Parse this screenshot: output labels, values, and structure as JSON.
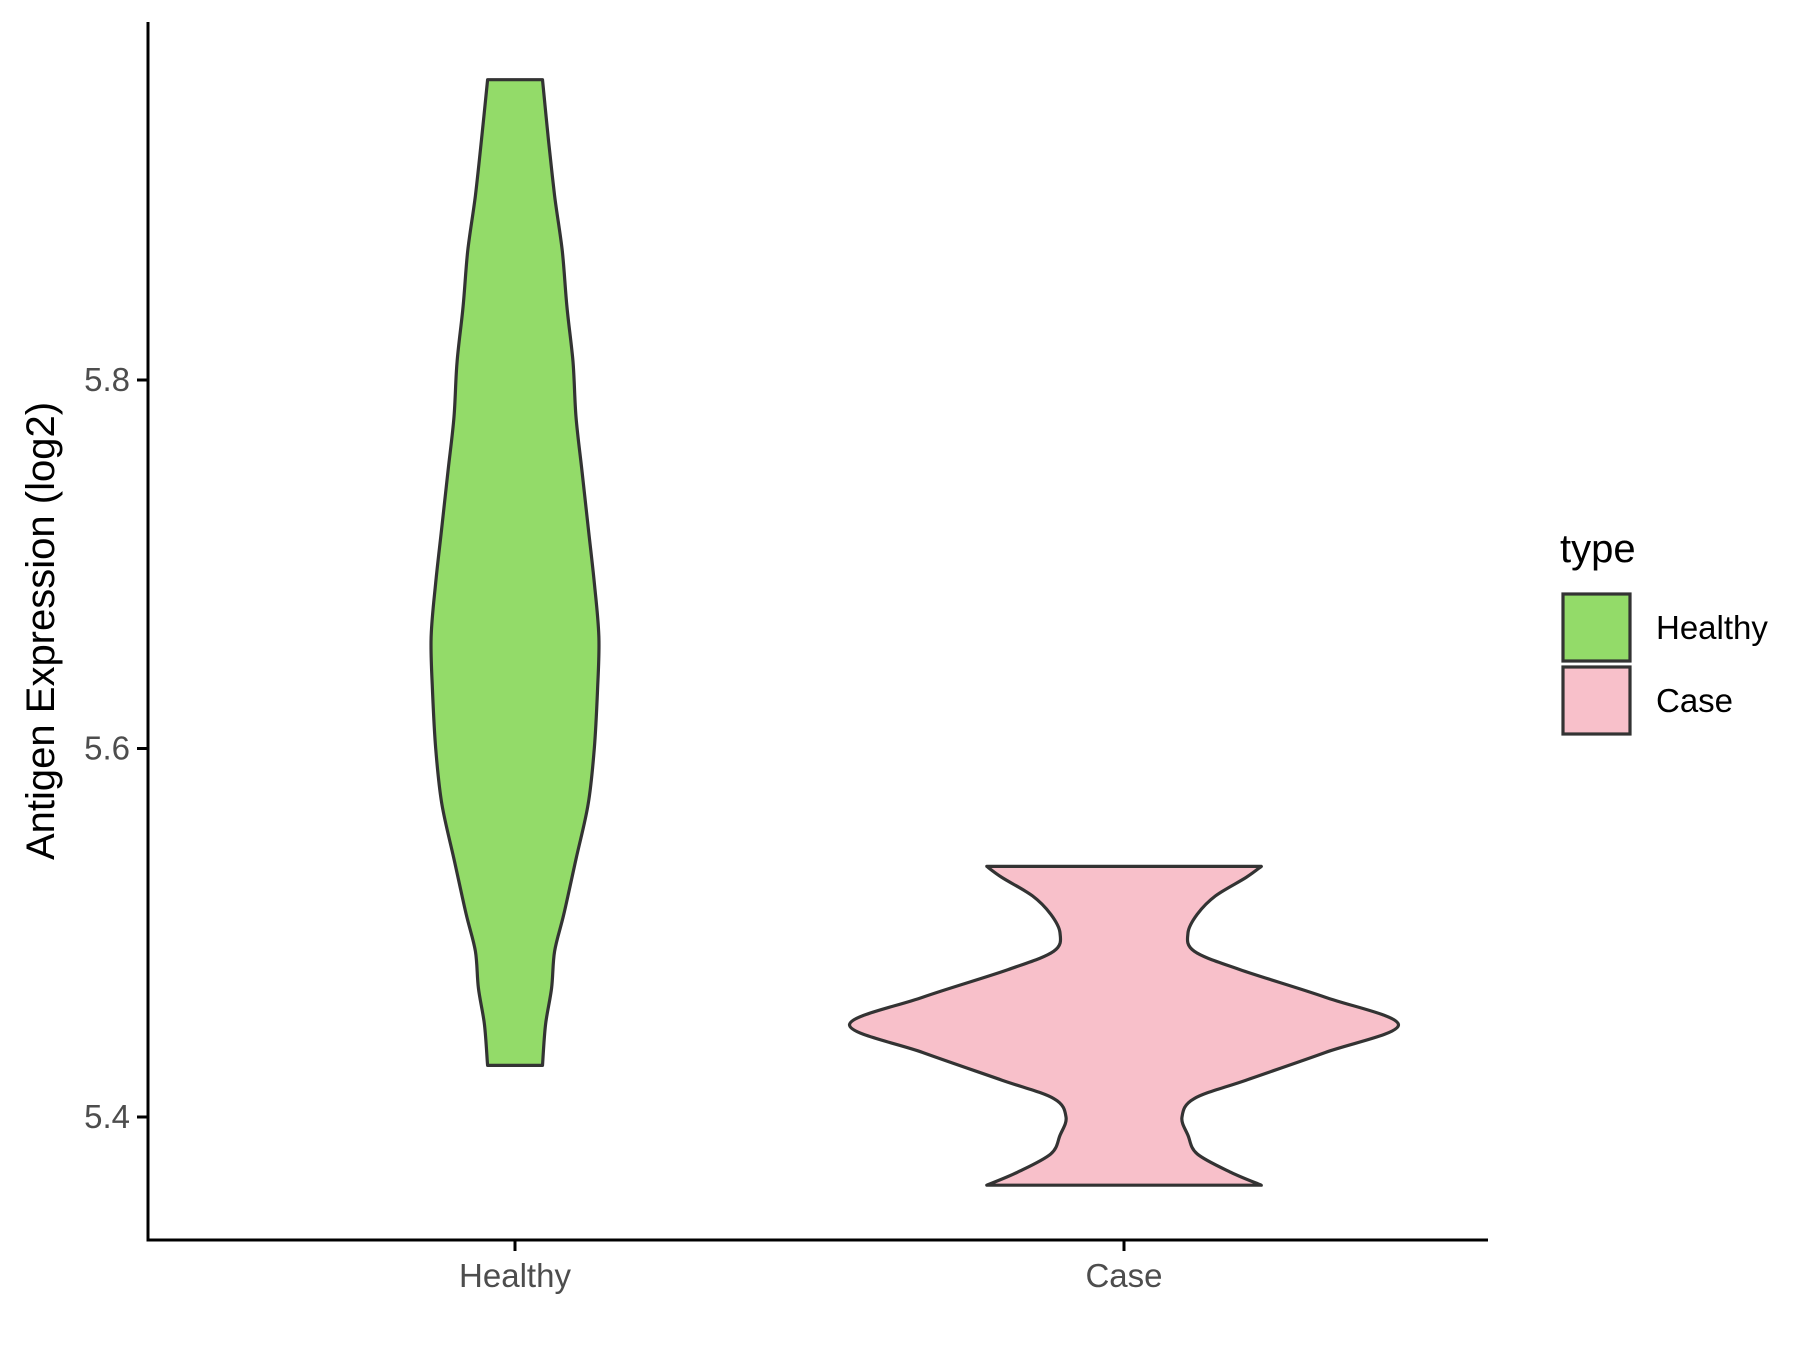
{
  "chart_data": {
    "type": "violin",
    "categories": [
      "Healthy",
      "Case"
    ],
    "ylabel": "Antigen Expression (log2)",
    "xlabel": "",
    "ylim": [
      5.335,
      6.0
    ],
    "yticks": [
      5.4,
      5.6,
      5.8
    ],
    "ytick_labels": [
      "5.4",
      "5.6",
      "5.8"
    ],
    "grid": false,
    "legend": {
      "title": "type",
      "position": "right",
      "entries": [
        {
          "label": "Healthy",
          "color": "#93db69"
        },
        {
          "label": "Case",
          "color": "#f8c0ca"
        }
      ]
    },
    "series": [
      {
        "category": "Healthy",
        "color": "#93db69",
        "min": 5.428,
        "max": 5.963,
        "density_profile": [
          [
            5.428,
            0.09
          ],
          [
            5.45,
            0.1
          ],
          [
            5.47,
            0.12
          ],
          [
            5.49,
            0.13
          ],
          [
            5.51,
            0.16
          ],
          [
            5.54,
            0.2
          ],
          [
            5.57,
            0.24
          ],
          [
            5.6,
            0.26
          ],
          [
            5.63,
            0.27
          ],
          [
            5.66,
            0.275
          ],
          [
            5.69,
            0.26
          ],
          [
            5.72,
            0.24
          ],
          [
            5.75,
            0.22
          ],
          [
            5.78,
            0.2
          ],
          [
            5.81,
            0.19
          ],
          [
            5.84,
            0.17
          ],
          [
            5.87,
            0.155
          ],
          [
            5.9,
            0.13
          ],
          [
            5.93,
            0.11
          ],
          [
            5.963,
            0.09
          ]
        ]
      },
      {
        "category": "Case",
        "color": "#f8c0ca",
        "min": 5.363,
        "max": 5.536,
        "density_profile": [
          [
            5.363,
            0.45
          ],
          [
            5.37,
            0.35
          ],
          [
            5.38,
            0.24
          ],
          [
            5.39,
            0.21
          ],
          [
            5.4,
            0.19
          ],
          [
            5.41,
            0.23
          ],
          [
            5.42,
            0.4
          ],
          [
            5.435,
            0.66
          ],
          [
            5.45,
            0.9
          ],
          [
            5.465,
            0.66
          ],
          [
            5.48,
            0.38
          ],
          [
            5.49,
            0.23
          ],
          [
            5.5,
            0.21
          ],
          [
            5.51,
            0.24
          ],
          [
            5.52,
            0.3
          ],
          [
            5.53,
            0.4
          ],
          [
            5.536,
            0.45
          ]
        ]
      }
    ]
  }
}
